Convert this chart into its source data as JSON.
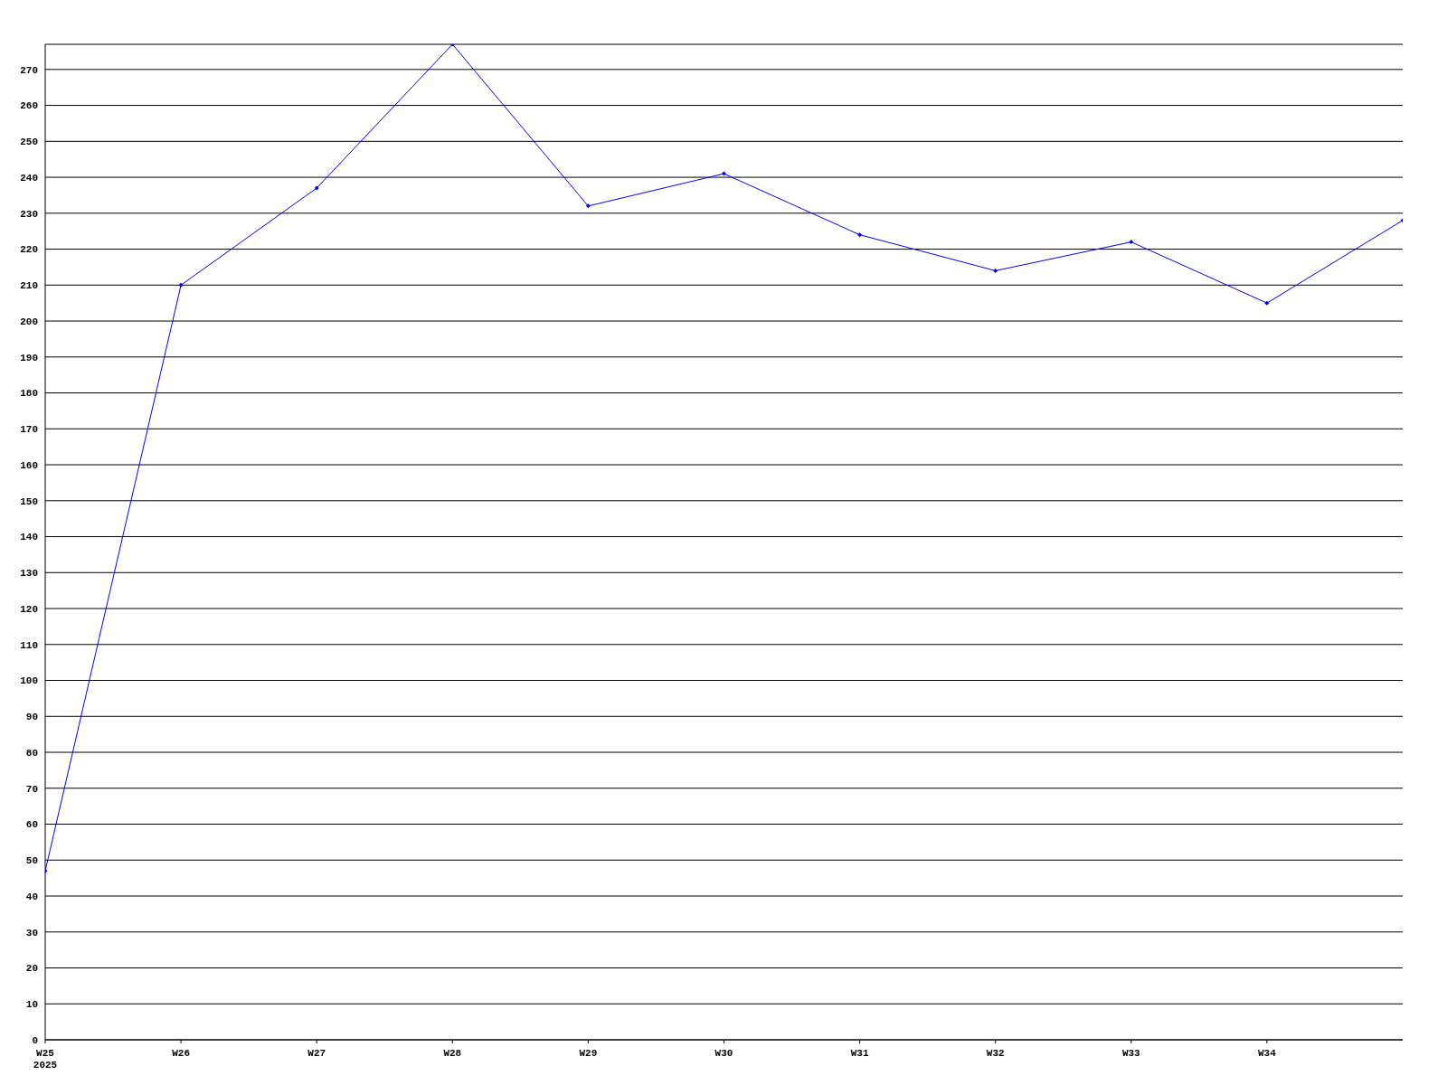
{
  "chart_data": {
    "type": "line",
    "categories": [
      "W25\n2025",
      "W26",
      "W27",
      "W28",
      "W29",
      "W30",
      "W31",
      "W32",
      "W33",
      "W34",
      null
    ],
    "series": [
      {
        "color": "#0000ff",
        "values": [
          47,
          210,
          237,
          277,
          232,
          241,
          224,
          214,
          222,
          205,
          228
        ]
      }
    ],
    "ylim": [
      0,
      277
    ],
    "yticks": [
      0,
      10,
      20,
      30,
      40,
      50,
      60,
      70,
      80,
      90,
      100,
      110,
      120,
      130,
      140,
      150,
      160,
      170,
      180,
      190,
      200,
      210,
      220,
      230,
      240,
      250,
      260,
      270
    ],
    "grid": "y",
    "marker": "diamond",
    "line_style": "solid",
    "legend": false
  }
}
